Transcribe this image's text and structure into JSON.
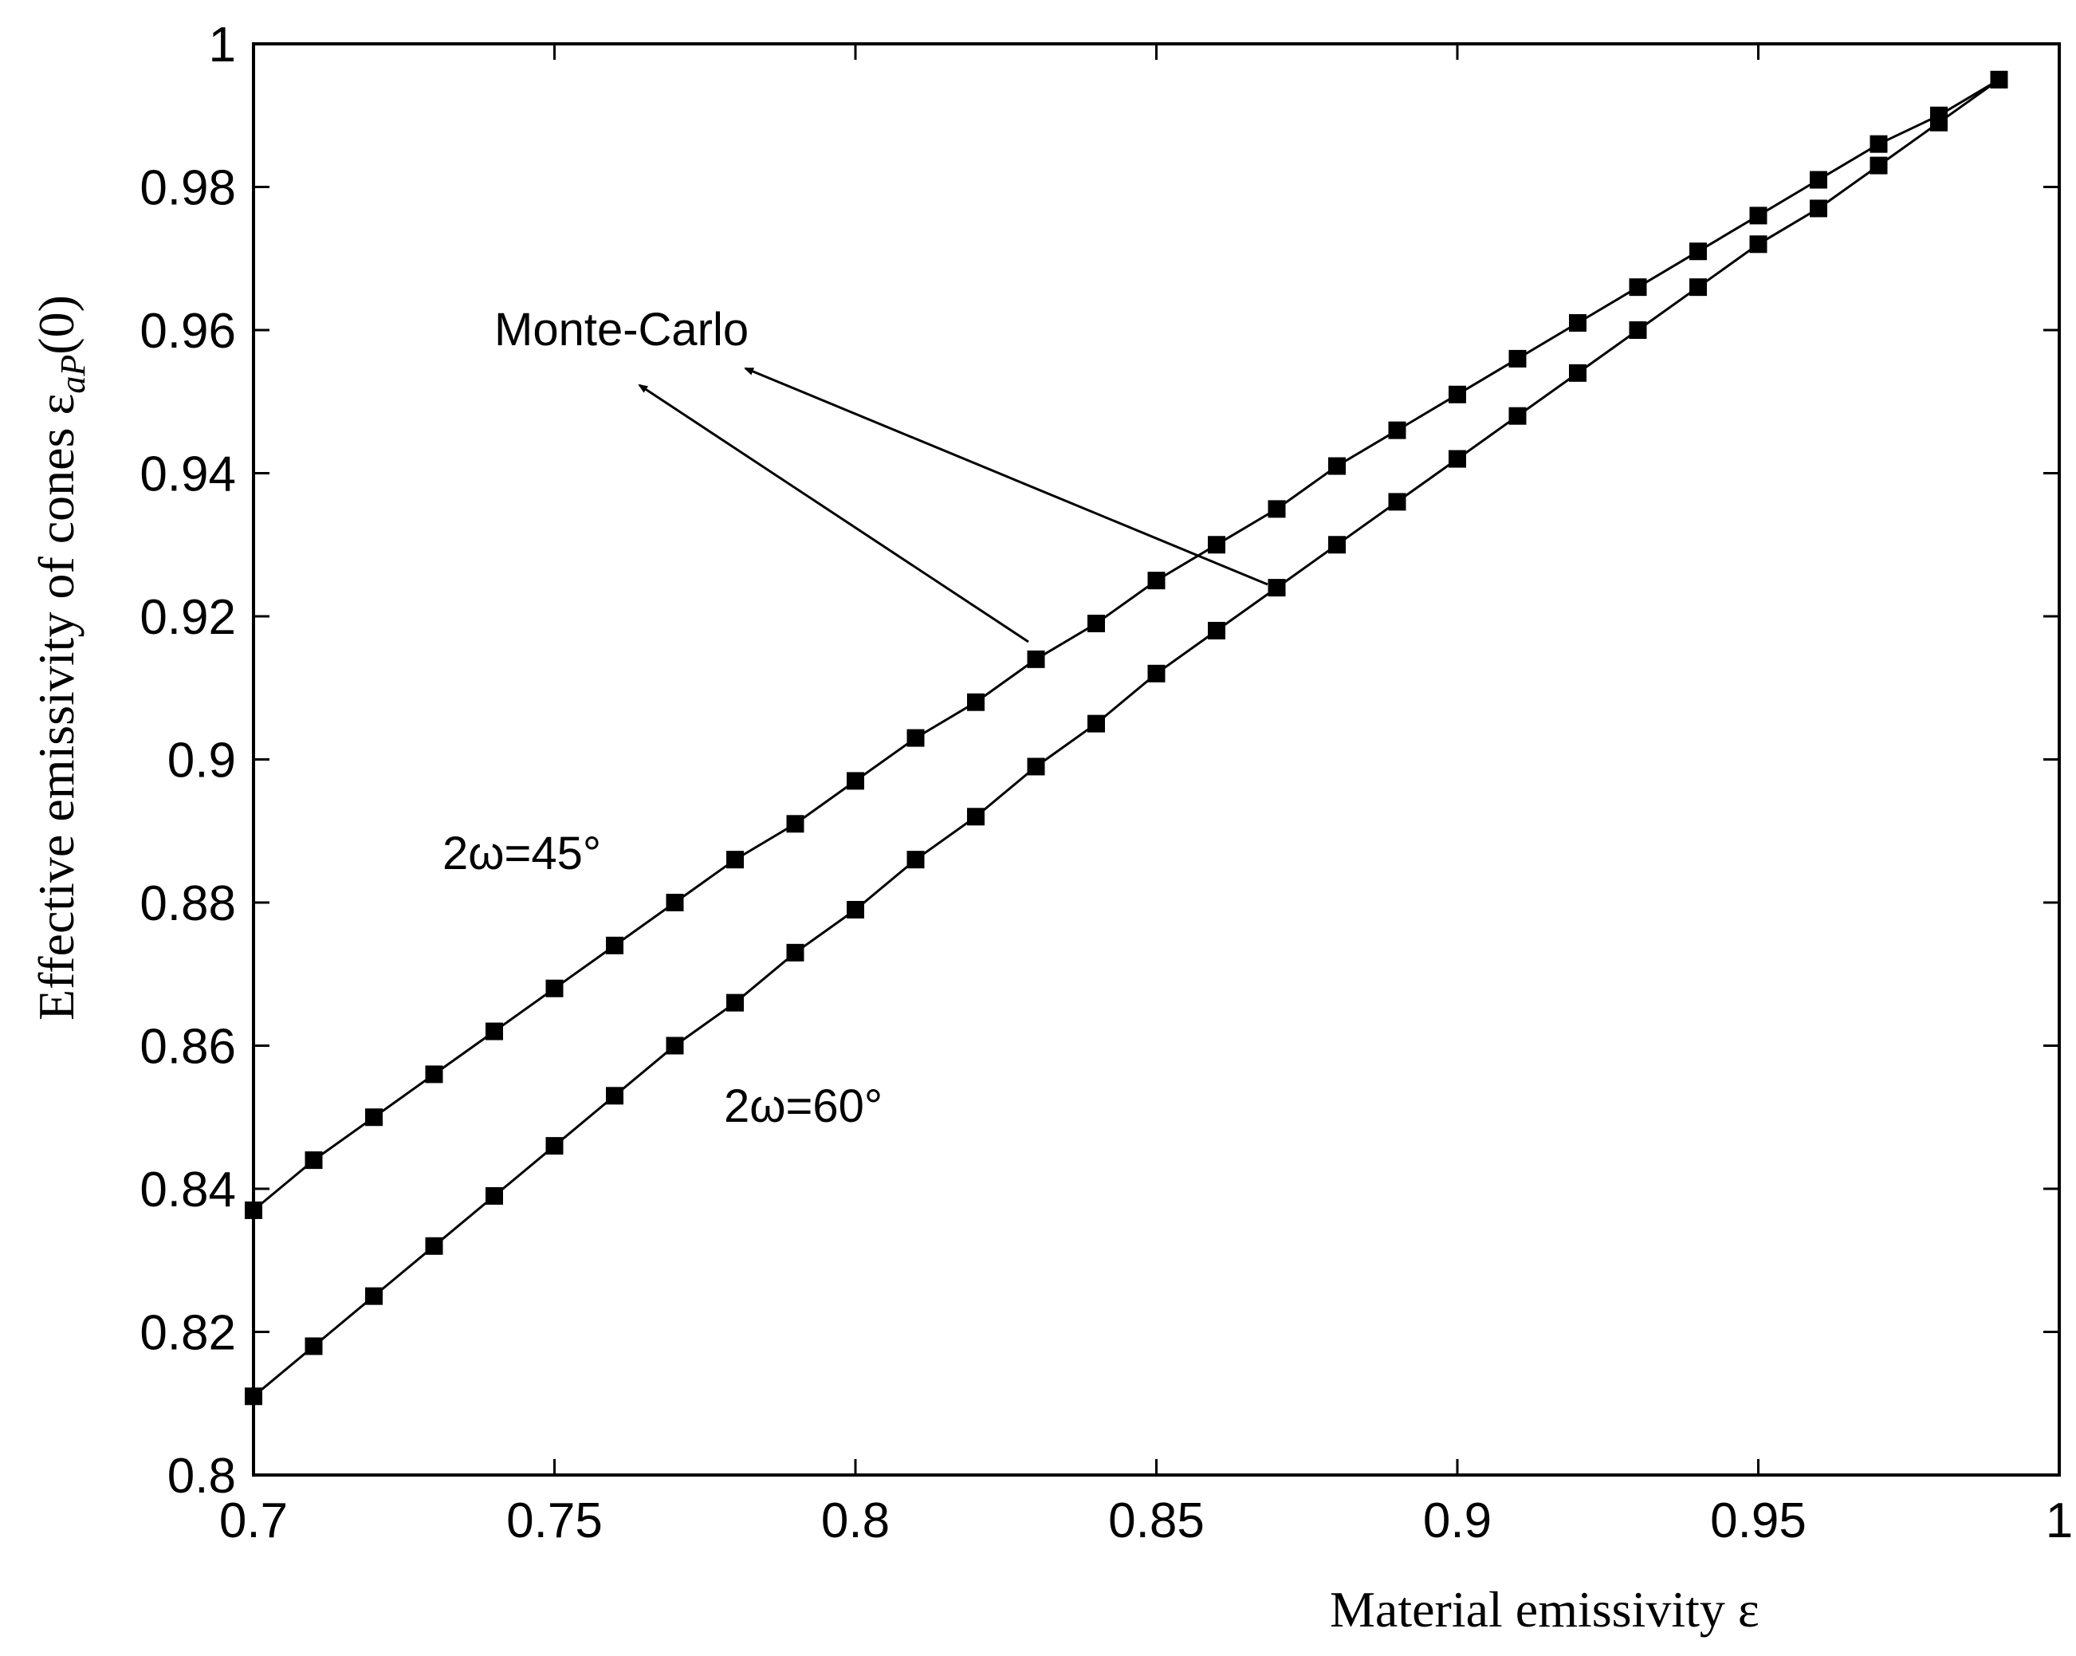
{
  "chart_data": {
    "type": "line",
    "xlabel": "Material emissivity ε",
    "ylabel": "Effective emissivity of cones ε",
    "ylabel_sub": "aP",
    "ylabel_suffix": "(0)",
    "xlim": [
      0.7,
      1.0
    ],
    "ylim": [
      0.8,
      1.0
    ],
    "x_ticks": [
      "0.7",
      "0.75",
      "0.8",
      "0.85",
      "0.9",
      "0.95",
      "1"
    ],
    "y_ticks": [
      "0.8",
      "0.82",
      "0.84",
      "0.86",
      "0.88",
      "0.9",
      "0.92",
      "0.94",
      "0.96",
      "0.98",
      "1"
    ],
    "grid": false,
    "x": [
      0.7,
      0.71,
      0.72,
      0.73,
      0.74,
      0.75,
      0.76,
      0.77,
      0.78,
      0.79,
      0.8,
      0.81,
      0.82,
      0.83,
      0.84,
      0.85,
      0.86,
      0.87,
      0.88,
      0.89,
      0.9,
      0.91,
      0.92,
      0.93,
      0.94,
      0.95,
      0.96,
      0.97,
      0.98,
      0.99
    ],
    "series": [
      {
        "values": [
          0.837,
          0.844,
          0.85,
          0.856,
          0.862,
          0.868,
          0.874,
          0.88,
          0.886,
          0.891,
          0.897,
          0.903,
          0.908,
          0.914,
          0.919,
          0.925,
          0.93,
          0.935,
          0.941,
          0.946,
          0.951,
          0.956,
          0.961,
          0.966,
          0.971,
          0.976,
          0.981,
          0.986,
          0.99,
          0.995
        ]
      },
      {
        "values": [
          0.811,
          0.818,
          0.825,
          0.832,
          0.839,
          0.846,
          0.853,
          0.86,
          0.866,
          0.873,
          0.879,
          0.886,
          0.892,
          0.899,
          0.905,
          0.912,
          0.918,
          0.924,
          0.93,
          0.936,
          0.942,
          0.948,
          0.954,
          0.96,
          0.966,
          0.972,
          0.977,
          0.983,
          0.989,
          0.995
        ]
      }
    ],
    "annotations": {
      "monte_carlo": "Monte-Carlo",
      "label_45": "2ω=45°",
      "label_60": "2ω=60°"
    },
    "colors": {
      "line": "#000000",
      "marker": "#000000",
      "axis": "#000000",
      "ylabel": "#3a0f0f"
    }
  }
}
